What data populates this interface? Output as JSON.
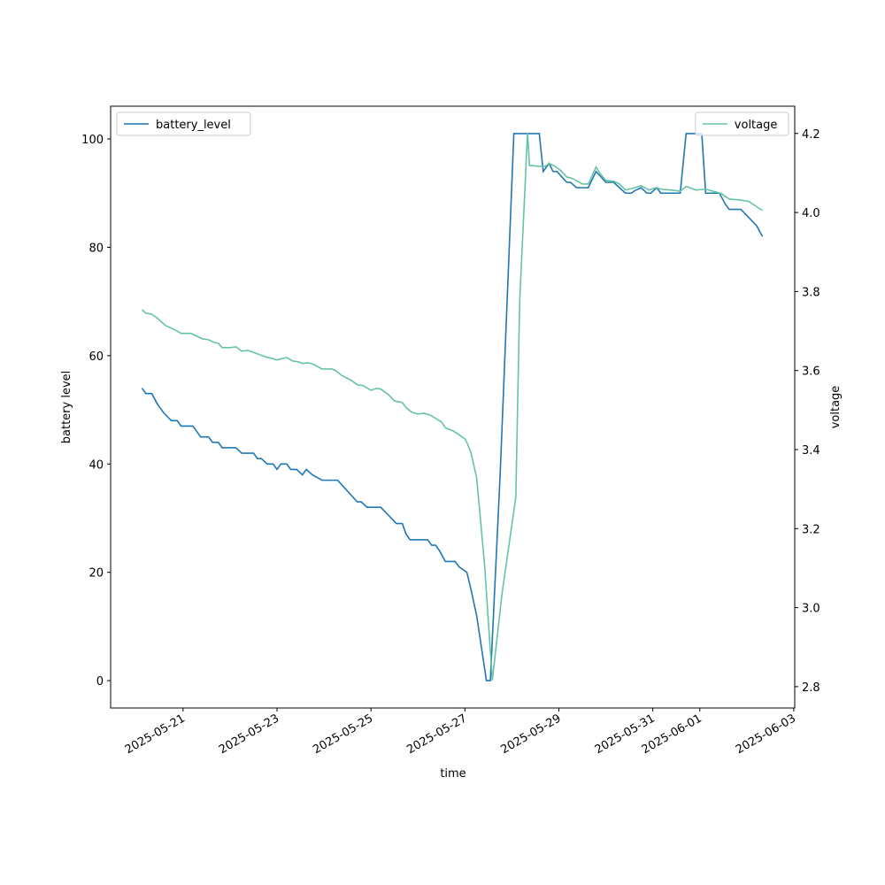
{
  "chart_data": {
    "type": "line",
    "xlabel": "time",
    "ylabel": "battery level",
    "y2label": "voltage",
    "xlim": [
      "2025-05-19T11:00",
      "2025-06-03T00:30"
    ],
    "xticks": [
      "2025-05-21",
      "2025-05-23",
      "2025-05-25",
      "2025-05-27",
      "2025-05-29",
      "2025-05-31",
      "2025-06-01",
      "2025-06-03"
    ],
    "ylim": [
      -5.05,
      106.05
    ],
    "yticks": [
      0,
      20,
      40,
      60,
      80,
      100
    ],
    "y2lim": [
      2.746,
      4.269
    ],
    "y2ticks": [
      2.8,
      {
        "value": 3,
        "label": "3.0"
      },
      3.2,
      3.4,
      3.6,
      3.8,
      {
        "value": 4,
        "label": "4.0"
      },
      4.2
    ],
    "series": [
      {
        "name": "battery_level",
        "color": "#1f77b4",
        "axis": "y",
        "legend": "upper left",
        "x": [
          "2025-05-20T03:00",
          "2025-05-20T05:00",
          "2025-05-20T08:00",
          "2025-05-20T11:00",
          "2025-05-20T14:00",
          "2025-05-20T18:00",
          "2025-05-20T21:00",
          "2025-05-20T23:00",
          "2025-05-21T05:00",
          "2025-05-21T09:00",
          "2025-05-21T13:00",
          "2025-05-21T15:00",
          "2025-05-21T18:00",
          "2025-05-21T20:00",
          "2025-05-22T03:00",
          "2025-05-22T06:00",
          "2025-05-22T12:00",
          "2025-05-22T14:00",
          "2025-05-22T16:00",
          "2025-05-22T19:00",
          "2025-05-22T22:00",
          "2025-05-23T00:00",
          "2025-05-23T02:00",
          "2025-05-23T05:00",
          "2025-05-23T07:00",
          "2025-05-23T10:00",
          "2025-05-23T13:00",
          "2025-05-23T15:00",
          "2025-05-23T18:00",
          "2025-05-23T23:00",
          "2025-05-24T07:00",
          "2025-05-24T17:00",
          "2025-05-24T19:00",
          "2025-05-24T22:00",
          "2025-05-25T05:00",
          "2025-05-25T13:00",
          "2025-05-25T16:00",
          "2025-05-25T18:00",
          "2025-05-25T20:00",
          "2025-05-26T05:00",
          "2025-05-26T07:00",
          "2025-05-26T09:00",
          "2025-05-26T11:00",
          "2025-05-26T14:00",
          "2025-05-26T19:00",
          "2025-05-26T21:00",
          "2025-05-27T01:00",
          "2025-05-27T03:00",
          "2025-05-27T06:00",
          "2025-05-27T11:00",
          "2025-05-27T13:00",
          "2025-05-27T18:00",
          "2025-05-28T01:00",
          "2025-05-28T14:00",
          "2025-05-28T16:00",
          "2025-05-28T19:00",
          "2025-05-28T21:00",
          "2025-05-28T23:00",
          "2025-05-29T04:00",
          "2025-05-29T06:00",
          "2025-05-29T09:00",
          "2025-05-29T15:00",
          "2025-05-29T19:00",
          "2025-05-30T00:00",
          "2025-05-30T04:00",
          "2025-05-30T07:00",
          "2025-05-30T10:00",
          "2025-05-30T13:00",
          "2025-05-30T15:00",
          "2025-05-30T18:00",
          "2025-05-30T21:00",
          "2025-05-30T23:00",
          "2025-05-31T02:00",
          "2025-05-31T04:00",
          "2025-05-31T09:00",
          "2025-05-31T14:00",
          "2025-05-31T17:00",
          "2025-06-01T01:00",
          "2025-06-01T03:00",
          "2025-06-01T10:00",
          "2025-06-01T13:00",
          "2025-06-01T15:00",
          "2025-06-01T21:00",
          "2025-06-02T05:00",
          "2025-06-02T08:00"
        ],
        "values": [
          54,
          53,
          53,
          51,
          49.5,
          48,
          48,
          47,
          47,
          45,
          45,
          44,
          44,
          43,
          43,
          42,
          42,
          41,
          41,
          40,
          40,
          39,
          40,
          40,
          39,
          39,
          38,
          39,
          38,
          37,
          37,
          33,
          33,
          32,
          32,
          29,
          29,
          27,
          26,
          26,
          25,
          25,
          24,
          22,
          22,
          21,
          20,
          17,
          12,
          0,
          0,
          38,
          101,
          101,
          94,
          95.5,
          94,
          94,
          92,
          92,
          91,
          91,
          94,
          92,
          92,
          91,
          90,
          90,
          90.5,
          91,
          90,
          90,
          91,
          90,
          90,
          90,
          101,
          101,
          90,
          90,
          88,
          87,
          87,
          84,
          82
        ]
      },
      {
        "name": "voltage",
        "color": "#66c2a5",
        "axis": "y2",
        "legend": "upper right",
        "x": [
          "2025-05-20T03:00",
          "2025-05-20T05:00",
          "2025-05-20T08:00",
          "2025-05-20T11:00",
          "2025-05-20T15:00",
          "2025-05-20T19:00",
          "2025-05-20T23:00",
          "2025-05-21T04:00",
          "2025-05-21T07:00",
          "2025-05-21T10:00",
          "2025-05-21T13:00",
          "2025-05-21T16:00",
          "2025-05-21T18:00",
          "2025-05-21T20:00",
          "2025-05-22T00:00",
          "2025-05-22T03:00",
          "2025-05-22T06:00",
          "2025-05-22T09:00",
          "2025-05-22T13:00",
          "2025-05-22T18:00",
          "2025-05-23T00:00",
          "2025-05-23T05:00",
          "2025-05-23T08:00",
          "2025-05-23T11:00",
          "2025-05-23T13:00",
          "2025-05-23T16:00",
          "2025-05-23T19:00",
          "2025-05-23T23:00",
          "2025-05-24T04:00",
          "2025-05-24T06:00",
          "2025-05-24T09:00",
          "2025-05-24T14:00",
          "2025-05-24T17:00",
          "2025-05-24T20:00",
          "2025-05-25T00:00",
          "2025-05-25T03:00",
          "2025-05-25T05:00",
          "2025-05-25T09:00",
          "2025-05-25T12:00",
          "2025-05-25T16:00",
          "2025-05-25T18:00",
          "2025-05-25T21:00",
          "2025-05-26T00:00",
          "2025-05-26T03:00",
          "2025-05-26T06:00",
          "2025-05-26T09:00",
          "2025-05-26T12:00",
          "2025-05-26T14:00",
          "2025-05-26T18:00",
          "2025-05-26T20:00",
          "2025-05-27T00:00",
          "2025-05-27T01:00",
          "2025-05-27T03:00",
          "2025-05-27T06:00",
          "2025-05-27T10:00",
          "2025-05-27T14:00",
          "2025-05-27T19:00",
          "2025-05-28T02:00",
          "2025-05-28T04:00",
          "2025-05-28T08:00",
          "2025-05-28T09:00",
          "2025-05-28T14:00",
          "2025-05-28T17:00",
          "2025-05-28T19:00",
          "2025-05-28T22:00",
          "2025-05-29T01:00",
          "2025-05-29T04:00",
          "2025-05-29T07:00",
          "2025-05-29T12:00",
          "2025-05-29T15:00",
          "2025-05-29T19:00",
          "2025-05-29T21:00",
          "2025-05-30T00:00",
          "2025-05-30T04:00",
          "2025-05-30T07:00",
          "2025-05-30T10:00",
          "2025-05-30T15:00",
          "2025-05-30T18:00",
          "2025-05-30T22:00",
          "2025-05-31T02:00",
          "2025-05-31T04:00",
          "2025-05-31T09:00",
          "2025-05-31T14:00",
          "2025-05-31T17:00",
          "2025-05-31T22:00",
          "2025-06-01T03:00",
          "2025-06-01T11:00",
          "2025-06-01T15:00",
          "2025-06-01T20:00",
          "2025-06-02T01:00",
          "2025-06-02T08:00"
        ],
        "values": [
          3.754,
          3.745,
          3.743,
          3.732,
          3.714,
          3.705,
          3.694,
          3.694,
          3.687,
          3.68,
          3.678,
          3.671,
          3.669,
          3.658,
          3.658,
          3.66,
          3.649,
          3.651,
          3.644,
          3.635,
          3.627,
          3.633,
          3.624,
          3.622,
          3.618,
          3.62,
          3.615,
          3.604,
          3.604,
          3.6,
          3.588,
          3.575,
          3.564,
          3.562,
          3.55,
          3.555,
          3.553,
          3.539,
          3.523,
          3.519,
          3.506,
          3.494,
          3.49,
          3.492,
          3.488,
          3.479,
          3.47,
          3.455,
          3.447,
          3.441,
          3.427,
          3.418,
          3.394,
          3.329,
          3.111,
          2.816,
          3.037,
          3.279,
          3.779,
          4.202,
          4.119,
          4.117,
          4.117,
          4.124,
          4.117,
          4.106,
          4.09,
          4.086,
          4.072,
          4.072,
          4.115,
          4.099,
          4.081,
          4.079,
          4.072,
          4.057,
          4.063,
          4.068,
          4.057,
          4.063,
          4.059,
          4.057,
          4.054,
          4.066,
          4.057,
          4.059,
          4.048,
          4.034,
          4.032,
          4.028,
          4.005
        ]
      }
    ]
  }
}
